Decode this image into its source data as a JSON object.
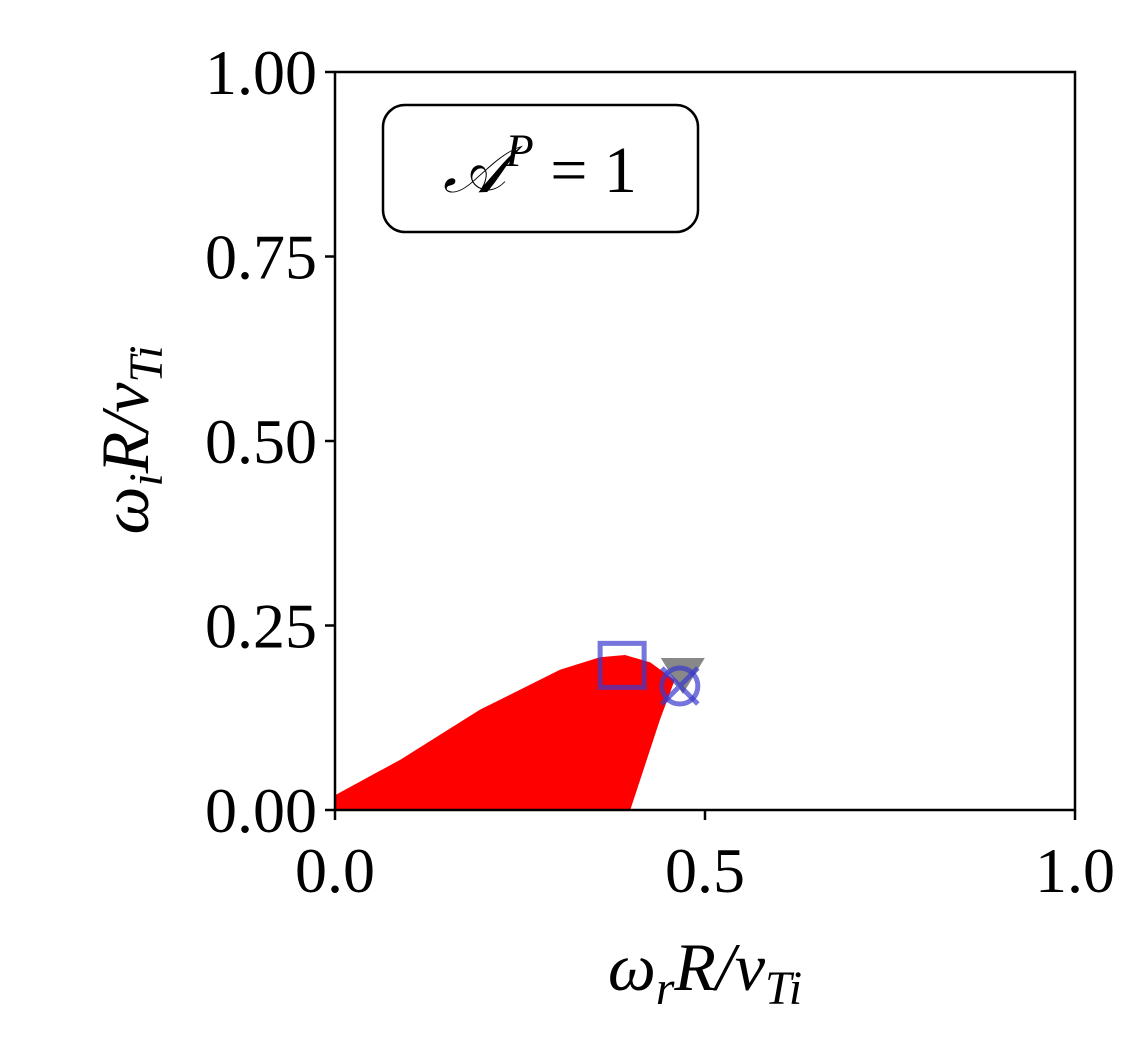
{
  "chart_data": {
    "type": "area",
    "xlabel": [
      {
        "text": "ω",
        "style": "normal"
      },
      {
        "text": "r",
        "style": "sub"
      },
      {
        "text": "R/v",
        "style": "normal"
      },
      {
        "text": "Ti",
        "style": "sub"
      }
    ],
    "ylabel": [
      {
        "text": "ω",
        "style": "normal"
      },
      {
        "text": "i",
        "style": "sub"
      },
      {
        "text": "R/v",
        "style": "normal"
      },
      {
        "text": "Ti",
        "style": "sub"
      }
    ],
    "annotation": [
      {
        "text": "𝒜",
        "style": "normal"
      },
      {
        "text": "P",
        "style": "sup"
      },
      {
        "text": " = 1",
        "style": "normal"
      }
    ],
    "x": [
      0,
      0,
      0.088,
      0.196,
      0.304,
      0.358,
      0.392,
      0.426,
      0.459,
      0.439,
      0.399
    ],
    "y": [
      0,
      0.02,
      0.068,
      0.136,
      0.19,
      0.207,
      0.21,
      0.2,
      0.176,
      0.122,
      0
    ],
    "color": "#ff0000",
    "markers": [
      {
        "marker": "square",
        "color": "#3a3acc",
        "x": 0.388,
        "y": 0.196
      },
      {
        "marker": "triangle-down",
        "color": "#555555",
        "x": 0.47,
        "y": 0.187
      },
      {
        "marker": "circle",
        "color": "#3a3acc",
        "x": 0.466,
        "y": 0.168
      },
      {
        "marker": "x",
        "color": "#3a3acc",
        "x": 0.466,
        "y": 0.168
      }
    ],
    "xlim": [
      0,
      1
    ],
    "ylim": [
      0,
      1
    ],
    "xticks": [
      {
        "value": 0,
        "label": "0.0"
      },
      0.5,
      {
        "value": 1,
        "label": "1.0"
      }
    ],
    "yticks": [
      {
        "value": 0,
        "label": "0.00"
      },
      0.25,
      {
        "value": 0.5,
        "label": "0.50"
      },
      0.75,
      {
        "value": 1,
        "label": "1.00"
      }
    ]
  }
}
